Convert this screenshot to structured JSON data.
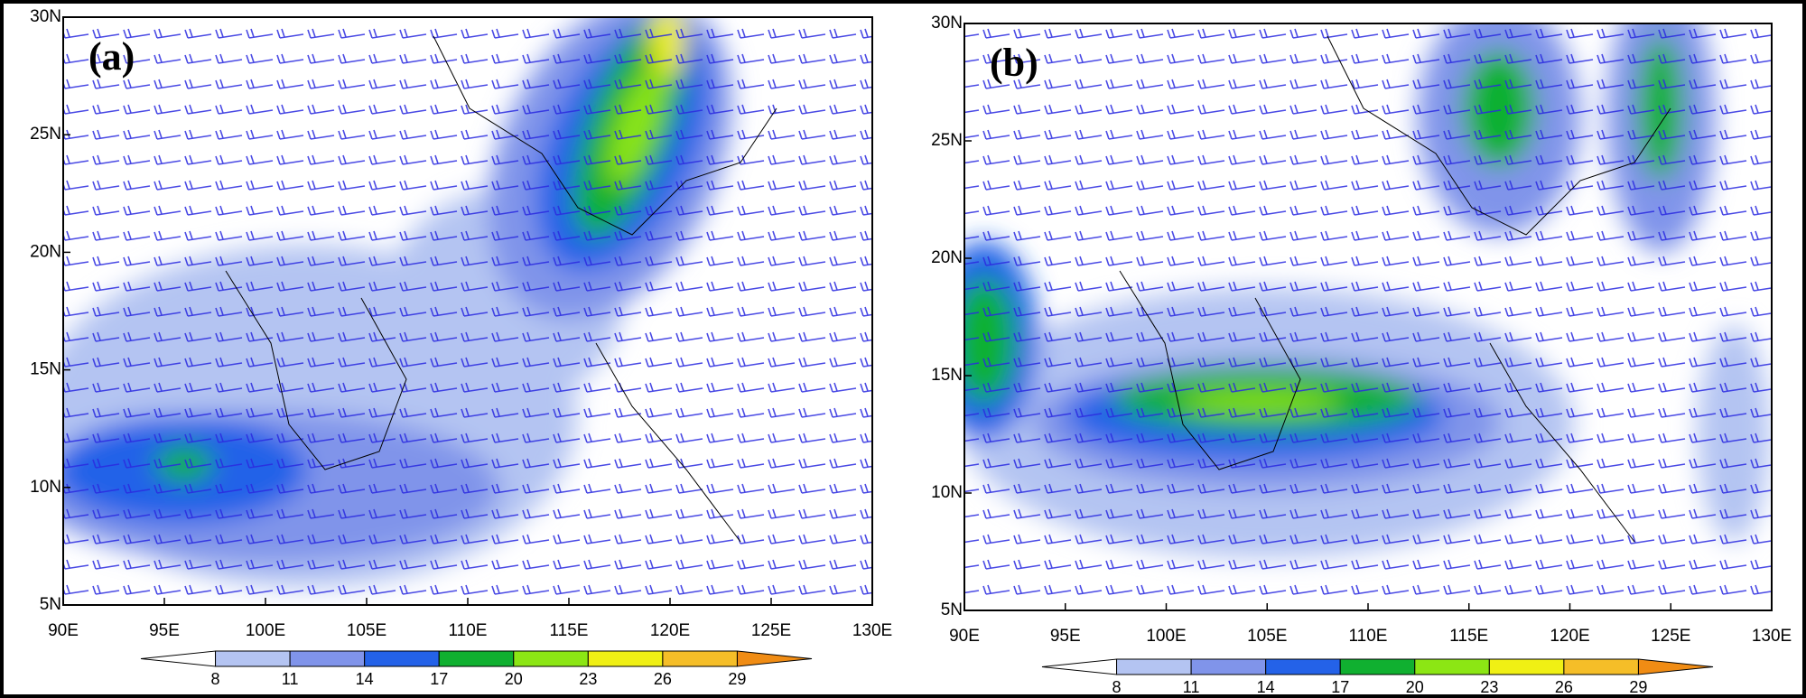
{
  "panels": [
    {
      "label": "(a)",
      "xlim": [
        90,
        130
      ],
      "ylim": [
        5,
        30
      ],
      "xticks": [
        {
          "value": 90,
          "label": "90E"
        },
        {
          "value": 95,
          "label": "95E"
        },
        {
          "value": 100,
          "label": "100E"
        },
        {
          "value": 105,
          "label": "105E"
        },
        {
          "value": 110,
          "label": "110E"
        },
        {
          "value": 115,
          "label": "115E"
        },
        {
          "value": 120,
          "label": "120E"
        },
        {
          "value": 125,
          "label": "125E"
        },
        {
          "value": 130,
          "label": "130E"
        }
      ],
      "yticks": [
        {
          "value": 5,
          "label": "5N"
        },
        {
          "value": 10,
          "label": "10N"
        },
        {
          "value": 15,
          "label": "15N"
        },
        {
          "value": 20,
          "label": "20N"
        },
        {
          "value": 25,
          "label": "25N"
        },
        {
          "value": 30,
          "label": "30N"
        }
      ]
    },
    {
      "label": "(b)",
      "xlim": [
        90,
        130
      ],
      "ylim": [
        5,
        30
      ],
      "xticks": [
        {
          "value": 90,
          "label": "90E"
        },
        {
          "value": 95,
          "label": "95E"
        },
        {
          "value": 100,
          "label": "100E"
        },
        {
          "value": 105,
          "label": "105E"
        },
        {
          "value": 110,
          "label": "110E"
        },
        {
          "value": 115,
          "label": "115E"
        },
        {
          "value": 120,
          "label": "120E"
        },
        {
          "value": 125,
          "label": "125E"
        },
        {
          "value": 130,
          "label": "130E"
        }
      ],
      "yticks": [
        {
          "value": 5,
          "label": "5N"
        },
        {
          "value": 10,
          "label": "10N"
        },
        {
          "value": 15,
          "label": "15N"
        },
        {
          "value": 20,
          "label": "20N"
        },
        {
          "value": 25,
          "label": "25N"
        },
        {
          "value": 30,
          "label": "30N"
        }
      ]
    }
  ],
  "colorbar": {
    "levels": [
      8,
      11,
      14,
      17,
      20,
      23,
      26,
      29
    ],
    "colors": [
      "#ffffff",
      "#b4c4f2",
      "#8094ea",
      "#2462e8",
      "#10b030",
      "#8ce614",
      "#f0f014",
      "#f5be28",
      "#f08c14"
    ]
  }
}
